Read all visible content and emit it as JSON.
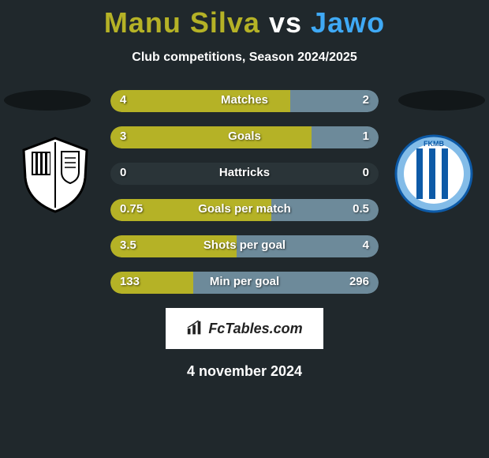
{
  "title": {
    "player1": "Manu Silva",
    "vs": "vs",
    "player2": "Jawo",
    "color_player1": "#b5b226",
    "color_vs": "#ffffff",
    "color_player2": "#3fa9f5"
  },
  "subtitle": "Club competitions, Season 2024/2025",
  "left_color": "#b5b226",
  "right_color": "#6d8a9a",
  "bar_bg": "#2a3438",
  "crest_left": {
    "bg": "#ffffff",
    "accent": "#000000"
  },
  "crest_right": {
    "bg": "#ffffff",
    "accent": "#3fa9f5",
    "stripe": "#0d5aa7"
  },
  "stats": [
    {
      "label": "Matches",
      "left_val": "4",
      "right_val": "2",
      "left_pct": 67,
      "right_pct": 33
    },
    {
      "label": "Goals",
      "left_val": "3",
      "right_val": "1",
      "left_pct": 75,
      "right_pct": 25
    },
    {
      "label": "Hattricks",
      "left_val": "0",
      "right_val": "0",
      "left_pct": 0,
      "right_pct": 0
    },
    {
      "label": "Goals per match",
      "left_val": "0.75",
      "right_val": "0.5",
      "left_pct": 60,
      "right_pct": 40
    },
    {
      "label": "Shots per goal",
      "left_val": "3.5",
      "right_val": "4",
      "left_pct": 47,
      "right_pct": 53
    },
    {
      "label": "Min per goal",
      "left_val": "133",
      "right_val": "296",
      "left_pct": 31,
      "right_pct": 69
    }
  ],
  "brand": "FcTables.com",
  "date": "4 november 2024"
}
